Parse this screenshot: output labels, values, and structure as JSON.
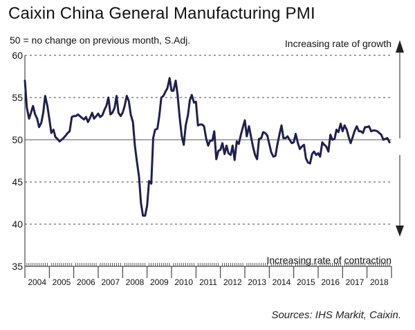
{
  "header": {
    "title": "Caixin China General Manufacturing PMI",
    "subtitle": "50 = no change on previous month, S.Adj.",
    "source": "Sources: IHS Markit, Caixin."
  },
  "chart_data": {
    "type": "line",
    "title": "Caixin China General Manufacturing PMI",
    "subtitle": "50 = no change on previous month, S.Adj.",
    "ylim": [
      35,
      60
    ],
    "yticks": [
      35,
      40,
      45,
      50,
      55,
      60
    ],
    "x_start_year": 2004,
    "x_end_year": 2018,
    "year_labels": [
      "2004",
      "2005",
      "2006",
      "2007",
      "2008",
      "2009",
      "2010",
      "2011",
      "2012",
      "2013",
      "2014",
      "2015",
      "2016",
      "2017",
      "2018"
    ],
    "reference_line": 50,
    "annotations": {
      "growth": "Increasing rate of growth",
      "contraction": "Increasing rate of contraction"
    },
    "series": [
      {
        "name": "Caixin China General Manufacturing PMI",
        "color": "#1f1f4d",
        "points": [
          [
            2004.0,
            57.0
          ],
          [
            2004.08,
            53.8
          ],
          [
            2004.17,
            52.5
          ],
          [
            2004.25,
            53.2
          ],
          [
            2004.33,
            54.0
          ],
          [
            2004.42,
            53.0
          ],
          [
            2004.5,
            52.5
          ],
          [
            2004.58,
            51.5
          ],
          [
            2004.67,
            52.0
          ],
          [
            2004.75,
            53.2
          ],
          [
            2004.83,
            55.2
          ],
          [
            2004.92,
            54.0
          ],
          [
            2005.0,
            52.5
          ],
          [
            2005.08,
            50.8
          ],
          [
            2005.17,
            51.2
          ],
          [
            2005.25,
            50.3
          ],
          [
            2005.33,
            50.1
          ],
          [
            2005.42,
            49.8
          ],
          [
            2005.5,
            50.0
          ],
          [
            2005.58,
            50.2
          ],
          [
            2005.67,
            50.5
          ],
          [
            2005.75,
            50.8
          ],
          [
            2005.83,
            51.0
          ],
          [
            2005.92,
            52.7
          ],
          [
            2006.0,
            52.8
          ],
          [
            2006.08,
            52.8
          ],
          [
            2006.17,
            53.0
          ],
          [
            2006.25,
            52.8
          ],
          [
            2006.33,
            52.6
          ],
          [
            2006.42,
            52.4
          ],
          [
            2006.5,
            52.7
          ],
          [
            2006.58,
            52.1
          ],
          [
            2006.67,
            52.6
          ],
          [
            2006.75,
            53.2
          ],
          [
            2006.83,
            52.5
          ],
          [
            2006.92,
            52.8
          ],
          [
            2007.0,
            53.1
          ],
          [
            2007.08,
            52.7
          ],
          [
            2007.17,
            52.9
          ],
          [
            2007.25,
            53.5
          ],
          [
            2007.33,
            54.0
          ],
          [
            2007.42,
            55.0
          ],
          [
            2007.5,
            53.0
          ],
          [
            2007.58,
            53.2
          ],
          [
            2007.67,
            53.8
          ],
          [
            2007.75,
            55.2
          ],
          [
            2007.83,
            53.2
          ],
          [
            2007.92,
            52.8
          ],
          [
            2008.0,
            53.2
          ],
          [
            2008.08,
            54.0
          ],
          [
            2008.17,
            55.2
          ],
          [
            2008.25,
            54.6
          ],
          [
            2008.33,
            53.0
          ],
          [
            2008.42,
            52.1
          ],
          [
            2008.5,
            49.3
          ],
          [
            2008.58,
            47.5
          ],
          [
            2008.67,
            45.6
          ],
          [
            2008.75,
            42.5
          ],
          [
            2008.83,
            41.0
          ],
          [
            2008.92,
            41.0
          ],
          [
            2009.0,
            42.2
          ],
          [
            2009.08,
            45.1
          ],
          [
            2009.17,
            44.8
          ],
          [
            2009.25,
            50.2
          ],
          [
            2009.33,
            51.2
          ],
          [
            2009.42,
            51.3
          ],
          [
            2009.5,
            52.8
          ],
          [
            2009.58,
            55.0
          ],
          [
            2009.67,
            55.2
          ],
          [
            2009.75,
            55.7
          ],
          [
            2009.83,
            56.1
          ],
          [
            2009.92,
            57.3
          ],
          [
            2010.0,
            55.8
          ],
          [
            2010.08,
            55.8
          ],
          [
            2010.17,
            57.0
          ],
          [
            2010.25,
            55.3
          ],
          [
            2010.33,
            52.7
          ],
          [
            2010.42,
            50.4
          ],
          [
            2010.5,
            49.4
          ],
          [
            2010.58,
            51.7
          ],
          [
            2010.67,
            52.9
          ],
          [
            2010.75,
            54.7
          ],
          [
            2010.83,
            55.3
          ],
          [
            2010.92,
            54.4
          ],
          [
            2011.0,
            54.5
          ],
          [
            2011.08,
            51.7
          ],
          [
            2011.17,
            51.8
          ],
          [
            2011.25,
            51.8
          ],
          [
            2011.33,
            51.6
          ],
          [
            2011.42,
            50.1
          ],
          [
            2011.5,
            49.3
          ],
          [
            2011.58,
            49.9
          ],
          [
            2011.67,
            49.9
          ],
          [
            2011.75,
            51.0
          ],
          [
            2011.83,
            47.7
          ],
          [
            2011.92,
            48.7
          ],
          [
            2012.0,
            48.8
          ],
          [
            2012.08,
            49.6
          ],
          [
            2012.17,
            48.3
          ],
          [
            2012.25,
            49.3
          ],
          [
            2012.33,
            48.4
          ],
          [
            2012.42,
            48.2
          ],
          [
            2012.5,
            49.3
          ],
          [
            2012.58,
            47.6
          ],
          [
            2012.67,
            49.8
          ],
          [
            2012.75,
            49.5
          ],
          [
            2012.83,
            50.5
          ],
          [
            2012.92,
            51.5
          ],
          [
            2013.0,
            52.3
          ],
          [
            2013.08,
            50.4
          ],
          [
            2013.17,
            51.6
          ],
          [
            2013.25,
            50.4
          ],
          [
            2013.33,
            49.2
          ],
          [
            2013.42,
            48.2
          ],
          [
            2013.5,
            47.7
          ],
          [
            2013.58,
            50.1
          ],
          [
            2013.67,
            50.2
          ],
          [
            2013.75,
            50.9
          ],
          [
            2013.83,
            50.8
          ],
          [
            2013.92,
            50.5
          ],
          [
            2014.0,
            49.5
          ],
          [
            2014.08,
            48.5
          ],
          [
            2014.17,
            48.0
          ],
          [
            2014.25,
            48.1
          ],
          [
            2014.33,
            49.4
          ],
          [
            2014.42,
            50.7
          ],
          [
            2014.5,
            51.7
          ],
          [
            2014.58,
            50.2
          ],
          [
            2014.67,
            50.2
          ],
          [
            2014.75,
            50.4
          ],
          [
            2014.83,
            50.0
          ],
          [
            2014.92,
            49.6
          ],
          [
            2015.0,
            49.7
          ],
          [
            2015.08,
            50.7
          ],
          [
            2015.17,
            49.6
          ],
          [
            2015.25,
            48.9
          ],
          [
            2015.33,
            49.2
          ],
          [
            2015.42,
            49.4
          ],
          [
            2015.5,
            47.8
          ],
          [
            2015.58,
            47.3
          ],
          [
            2015.67,
            47.2
          ],
          [
            2015.75,
            48.3
          ],
          [
            2015.83,
            48.6
          ],
          [
            2015.92,
            48.2
          ],
          [
            2016.0,
            48.4
          ],
          [
            2016.08,
            48.0
          ],
          [
            2016.17,
            49.7
          ],
          [
            2016.25,
            49.4
          ],
          [
            2016.33,
            49.2
          ],
          [
            2016.42,
            48.6
          ],
          [
            2016.5,
            50.6
          ],
          [
            2016.58,
            50.0
          ],
          [
            2016.67,
            50.1
          ],
          [
            2016.75,
            51.2
          ],
          [
            2016.83,
            50.9
          ],
          [
            2016.92,
            51.9
          ],
          [
            2017.0,
            51.0
          ],
          [
            2017.08,
            51.7
          ],
          [
            2017.17,
            51.2
          ],
          [
            2017.25,
            50.3
          ],
          [
            2017.33,
            49.6
          ],
          [
            2017.42,
            50.4
          ],
          [
            2017.5,
            51.1
          ],
          [
            2017.58,
            51.6
          ],
          [
            2017.67,
            51.0
          ],
          [
            2017.75,
            51.0
          ],
          [
            2017.83,
            50.8
          ],
          [
            2017.92,
            51.5
          ],
          [
            2018.0,
            51.5
          ],
          [
            2018.08,
            51.6
          ],
          [
            2018.17,
            51.0
          ],
          [
            2018.25,
            51.1
          ],
          [
            2018.33,
            51.1
          ],
          [
            2018.42,
            51.0
          ],
          [
            2018.5,
            50.8
          ],
          [
            2018.58,
            50.6
          ],
          [
            2018.67,
            50.0
          ],
          [
            2018.75,
            50.1
          ],
          [
            2018.83,
            50.2
          ],
          [
            2018.92,
            49.7
          ]
        ]
      }
    ]
  }
}
